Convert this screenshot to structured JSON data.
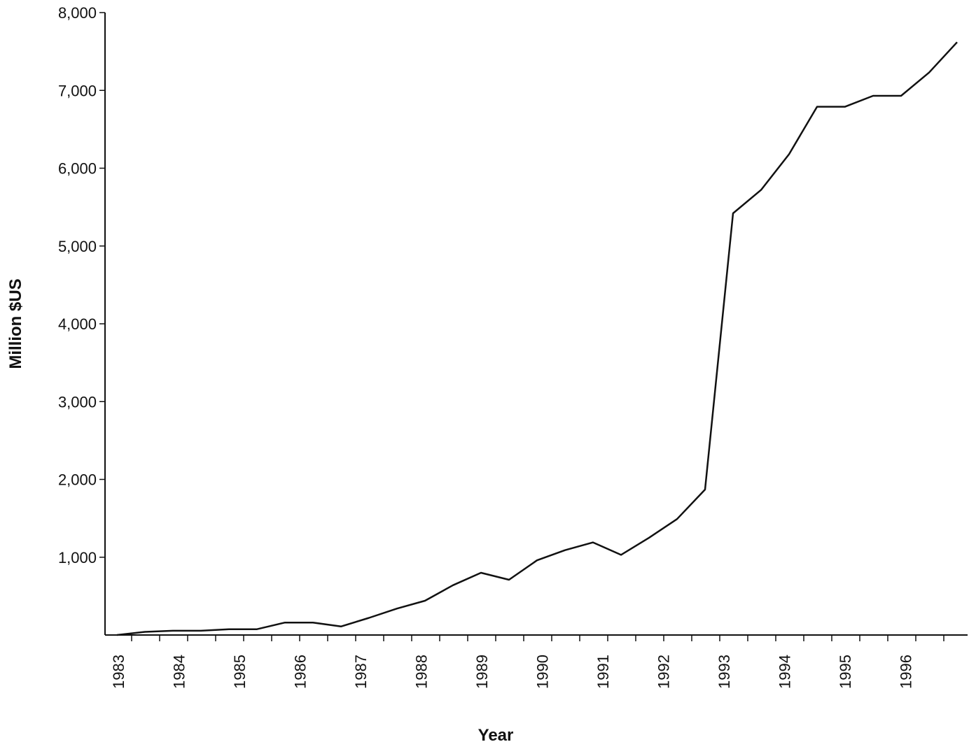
{
  "chart_data": {
    "type": "line",
    "xlabel": "Year",
    "ylabel": "Million  $US",
    "ylim": [
      0,
      8000
    ],
    "yticks": [
      1000,
      2000,
      3000,
      4000,
      5000,
      6000,
      7000,
      8000
    ],
    "ytick_labels": [
      "1,000",
      "2,000",
      "3,000",
      "4,000",
      "5,000",
      "6,000",
      "7,000",
      "8,000"
    ],
    "xlim": [
      1983.0,
      1997.5
    ],
    "year_labels": [
      "1983",
      "1984",
      "1985",
      "1986",
      "1987",
      "1988",
      "1989",
      "1990",
      "1991",
      "1992",
      "1993",
      "1994",
      "1995",
      "1996"
    ],
    "grid": false,
    "legend": false,
    "series": [
      {
        "values": [
          {
            "x": 1983.0,
            "y": 0
          },
          {
            "x": 1983.5,
            "y": 40
          },
          {
            "x": 1984.0,
            "y": 55
          },
          {
            "x": 1984.5,
            "y": 55
          },
          {
            "x": 1985.0,
            "y": 75
          },
          {
            "x": 1985.5,
            "y": 75
          },
          {
            "x": 1986.0,
            "y": 160
          },
          {
            "x": 1986.5,
            "y": 160
          },
          {
            "x": 1987.0,
            "y": 110
          },
          {
            "x": 1987.5,
            "y": 220
          },
          {
            "x": 1988.0,
            "y": 340
          },
          {
            "x": 1988.5,
            "y": 440
          },
          {
            "x": 1989.0,
            "y": 640
          },
          {
            "x": 1989.5,
            "y": 800
          },
          {
            "x": 1990.0,
            "y": 710
          },
          {
            "x": 1990.5,
            "y": 960
          },
          {
            "x": 1991.0,
            "y": 1090
          },
          {
            "x": 1991.5,
            "y": 1190
          },
          {
            "x": 1992.0,
            "y": 1030
          },
          {
            "x": 1992.5,
            "y": 1250
          },
          {
            "x": 1993.0,
            "y": 1490
          },
          {
            "x": 1993.5,
            "y": 1870
          },
          {
            "x": 1994.0,
            "y": 5420
          },
          {
            "x": 1994.5,
            "y": 5720
          },
          {
            "x": 1995.0,
            "y": 6180
          },
          {
            "x": 1995.5,
            "y": 6790
          },
          {
            "x": 1996.0,
            "y": 6790
          },
          {
            "x": 1996.5,
            "y": 6930
          },
          {
            "x": 1997.0,
            "y": 6930
          },
          {
            "x": 1997.5,
            "y": 7230
          },
          {
            "x": 1998.0,
            "y": 7620
          }
        ]
      }
    ]
  }
}
